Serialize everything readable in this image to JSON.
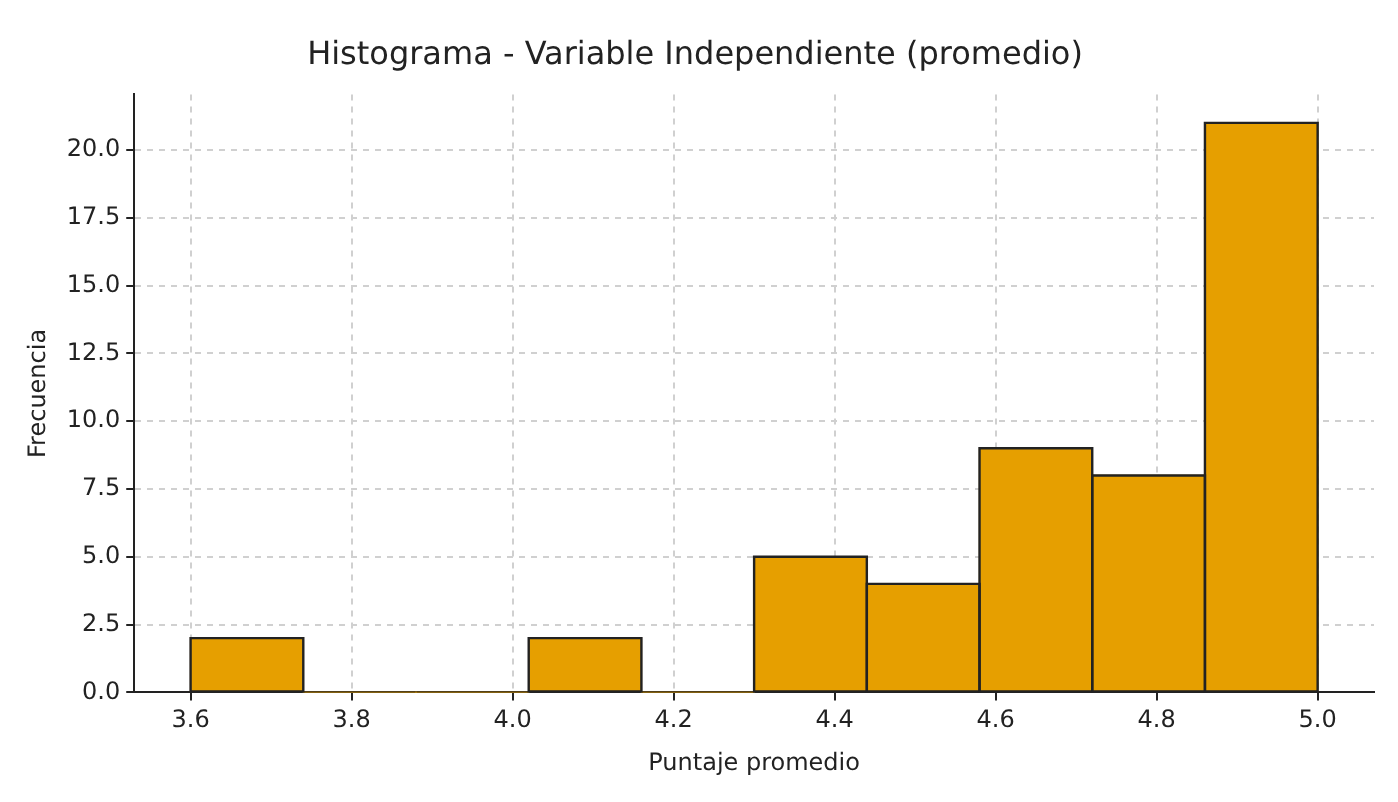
{
  "chart_data": {
    "type": "histogram",
    "title": "Histograma - Variable Independiente (promedio)",
    "xlabel": "Puntaje promedio",
    "ylabel": "Frecuencia",
    "bins": [
      3.6,
      3.74,
      3.88,
      4.02,
      4.16,
      4.3,
      4.44,
      4.58,
      4.72,
      4.86,
      5.0
    ],
    "values": [
      2,
      0,
      0,
      2,
      0,
      5,
      4,
      9,
      8,
      21
    ],
    "color": "#e69f00",
    "xlim": [
      3.53,
      5.07
    ],
    "ylim": [
      0,
      22.05
    ],
    "xticks": [
      {
        "value": 3.6,
        "label": "3.6"
      },
      {
        "value": 3.8,
        "label": "3.8"
      },
      {
        "value": 4.0,
        "label": "4.0"
      },
      {
        "value": 4.2,
        "label": "4.2"
      },
      {
        "value": 4.4,
        "label": "4.4"
      },
      {
        "value": 4.6,
        "label": "4.6"
      },
      {
        "value": 4.8,
        "label": "4.8"
      },
      {
        "value": 5.0,
        "label": "5.0"
      }
    ],
    "yticks": [
      {
        "value": 0,
        "label": "0.0"
      },
      {
        "value": 2.5,
        "label": "2.5"
      },
      {
        "value": 5,
        "label": "5.0"
      },
      {
        "value": 7.5,
        "label": "7.5"
      },
      {
        "value": 10,
        "label": "10.0"
      },
      {
        "value": 12.5,
        "label": "12.5"
      },
      {
        "value": 15,
        "label": "15.0"
      },
      {
        "value": 17.5,
        "label": "17.5"
      },
      {
        "value": 20,
        "label": "20.0"
      }
    ],
    "grid": true,
    "legend": false
  }
}
